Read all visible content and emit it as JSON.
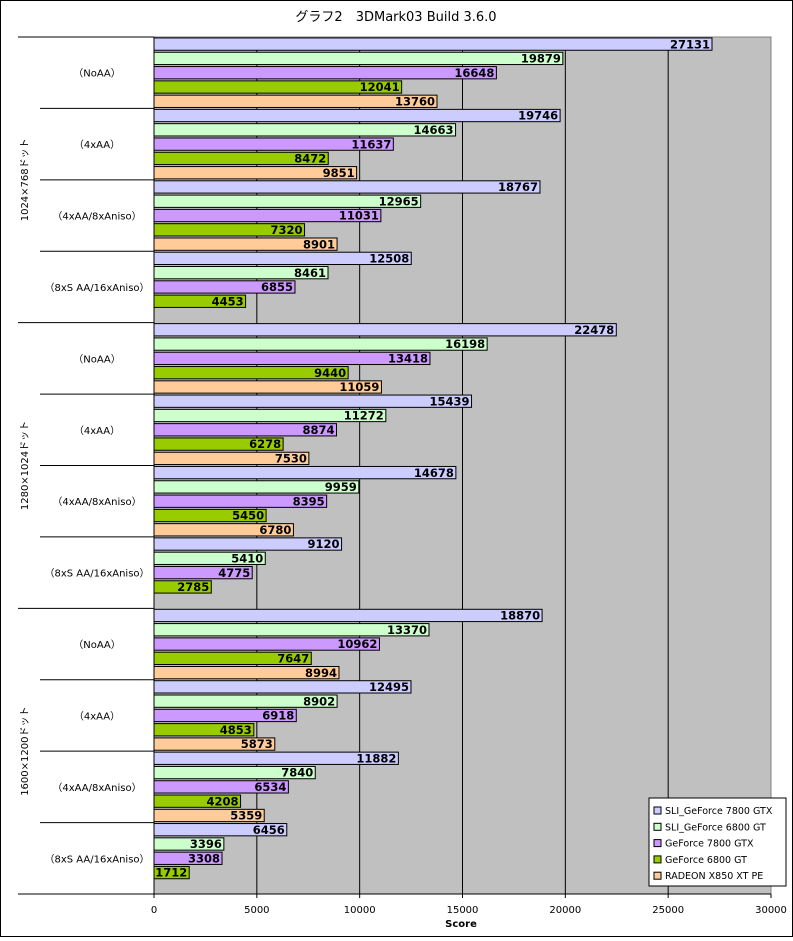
{
  "chart_data": {
    "type": "bar",
    "orientation": "horizontal",
    "title": "グラフ2　3DMark03  Build 3.6.0",
    "xlabel": "Score",
    "xlim": [
      0,
      30000
    ],
    "xticks": [
      0,
      5000,
      10000,
      15000,
      20000,
      25000,
      30000
    ],
    "grid": true,
    "legend_position": "bottom-right",
    "series": [
      {
        "name": "SLI_GeForce 7800 GTX",
        "color": "#ccccff"
      },
      {
        "name": "SLI_GeForce 6800 GT",
        "color": "#ccffcc"
      },
      {
        "name": "GeForce 7800 GTX",
        "color": "#cc99ff"
      },
      {
        "name": "GeForce 6800 GT",
        "color": "#99cc00"
      },
      {
        "name": "RADEON X850 XT PE",
        "color": "#ffcc99"
      }
    ],
    "groups": [
      {
        "resolution": "1024×768ドット",
        "settings": [
          {
            "label": "（NoAA）",
            "values": [
              27131,
              19879,
              16648,
              12041,
              13760
            ]
          },
          {
            "label": "（4xAA）",
            "values": [
              19746,
              14663,
              11637,
              8472,
              9851
            ]
          },
          {
            "label": "（4xAA/8xAniso）",
            "values": [
              18767,
              12965,
              11031,
              7320,
              8901
            ]
          },
          {
            "label": "（8xS AA/16xAniso）",
            "values": [
              12508,
              8461,
              6855,
              4453,
              null
            ]
          }
        ]
      },
      {
        "resolution": "1280×1024ドット",
        "settings": [
          {
            "label": "（NoAA）",
            "values": [
              22478,
              16198,
              13418,
              9440,
              11059
            ]
          },
          {
            "label": "（4xAA）",
            "values": [
              15439,
              11272,
              8874,
              6278,
              7530
            ]
          },
          {
            "label": "（4xAA/8xAniso）",
            "values": [
              14678,
              9959,
              8395,
              5450,
              6780
            ]
          },
          {
            "label": "（8xS AA/16xAniso）",
            "values": [
              9120,
              5410,
              4775,
              2785,
              null
            ]
          }
        ]
      },
      {
        "resolution": "1600×1200ドット",
        "settings": [
          {
            "label": "（NoAA）",
            "values": [
              18870,
              13370,
              10962,
              7647,
              8994
            ]
          },
          {
            "label": "（4xAA）",
            "values": [
              12495,
              8902,
              6918,
              4853,
              5873
            ]
          },
          {
            "label": "（4xAA/8xAniso）",
            "values": [
              11882,
              7840,
              6534,
              4208,
              5359
            ]
          },
          {
            "label": "（8xS AA/16xAniso）",
            "values": [
              6456,
              3396,
              3308,
              1712,
              null
            ]
          }
        ]
      }
    ]
  },
  "colors": {
    "plot_background": "#c0c0c0",
    "gridline": "#000000"
  }
}
